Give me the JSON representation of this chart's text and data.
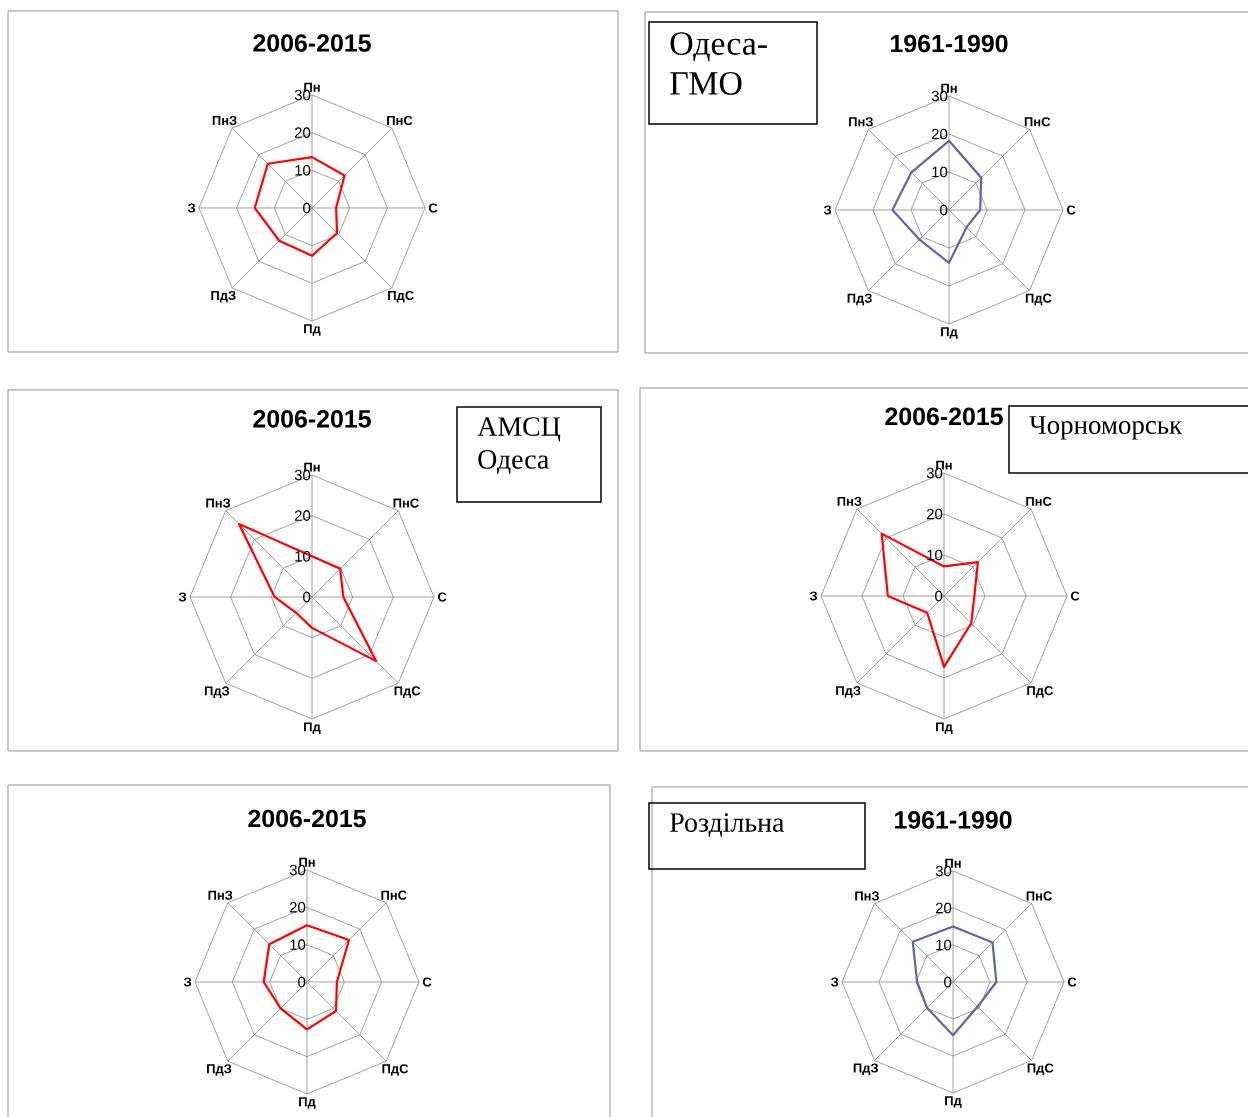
{
  "chart_data": [
    {
      "type": "radar",
      "title": "2006-2015",
      "categories": [
        "Пн",
        "ПнС",
        "С",
        "ПдС",
        "Пд",
        "ПдЗ",
        "З",
        "ПнЗ"
      ],
      "ylim": [
        0,
        30
      ],
      "yticks": [
        0,
        10,
        20,
        30
      ],
      "grid": true,
      "series": [
        {
          "color": "#ff0000",
          "values": [
            13.5,
            12.2,
            6.4,
            9.4,
            12.7,
            12.3,
            15.2,
            16.6
          ]
        }
      ]
    },
    {
      "type": "radar",
      "title": "1961-1990",
      "categories": [
        "Пн",
        "ПнС",
        "С",
        "ПдС",
        "Пд",
        "ПдЗ",
        "З",
        "ПнЗ"
      ],
      "ylim": [
        0,
        30
      ],
      "yticks": [
        0,
        10,
        20,
        30
      ],
      "grid": true,
      "annotations": [
        "Одеса-ГМО"
      ],
      "series": [
        {
          "color": "#6464a0",
          "values": [
            18.2,
            12.0,
            8.2,
            6.5,
            13.9,
            11.0,
            14.9,
            14.0
          ]
        }
      ]
    },
    {
      "type": "radar",
      "title": "2006-2015",
      "categories": [
        "Пн",
        "ПнС",
        "С",
        "ПдС",
        "Пд",
        "ПдЗ",
        "З",
        "ПнЗ"
      ],
      "ylim": [
        0,
        30
      ],
      "yticks": [
        0,
        10,
        20,
        30
      ],
      "grid": true,
      "annotations": [
        "АМСЦ Одеса"
      ],
      "series": [
        {
          "color": "#ff0000",
          "values": [
            10.0,
            9.8,
            7.7,
            22.3,
            7.6,
            5.5,
            9.2,
            25.4
          ]
        }
      ]
    },
    {
      "type": "radar",
      "title": "2006-2015",
      "categories": [
        "Пн",
        "ПнС",
        "С",
        "ПдС",
        "Пд",
        "ПдЗ",
        "З",
        "ПнЗ"
      ],
      "ylim": [
        0,
        30
      ],
      "yticks": [
        0,
        10,
        20,
        30
      ],
      "grid": true,
      "annotations": [
        "Чорноморськ"
      ],
      "series": [
        {
          "color": "#ff0000",
          "values": [
            7.2,
            11.7,
            7.4,
            9.4,
            17.3,
            5.8,
            13.7,
            21.5
          ]
        }
      ]
    },
    {
      "type": "radar",
      "title": "2006-2015",
      "categories": [
        "Пн",
        "ПнС",
        "С",
        "ПдС",
        "Пд",
        "ПдЗ",
        "З",
        "ПнЗ"
      ],
      "ylim": [
        0,
        30
      ],
      "yticks": [
        0,
        10,
        20,
        30
      ],
      "grid": true,
      "series": [
        {
          "color": "#ff0000",
          "values": [
            15.2,
            15.9,
            8.0,
            11.0,
            12.7,
            10.0,
            11.6,
            14.3
          ]
        }
      ]
    },
    {
      "type": "radar",
      "title": "1961-1990",
      "categories": [
        "Пн",
        "ПнС",
        "С",
        "ПдС",
        "Пд",
        "ПдЗ",
        "З",
        "ПнЗ"
      ],
      "ylim": [
        0,
        30
      ],
      "yticks": [
        0,
        10,
        20,
        30
      ],
      "grid": true,
      "annotations": [
        "Роздільна"
      ],
      "series": [
        {
          "color": "#6464a0",
          "values": [
            15.0,
            15.1,
            11.7,
            9.4,
            14.4,
            9.9,
            9.7,
            15.4
          ]
        }
      ]
    }
  ]
}
